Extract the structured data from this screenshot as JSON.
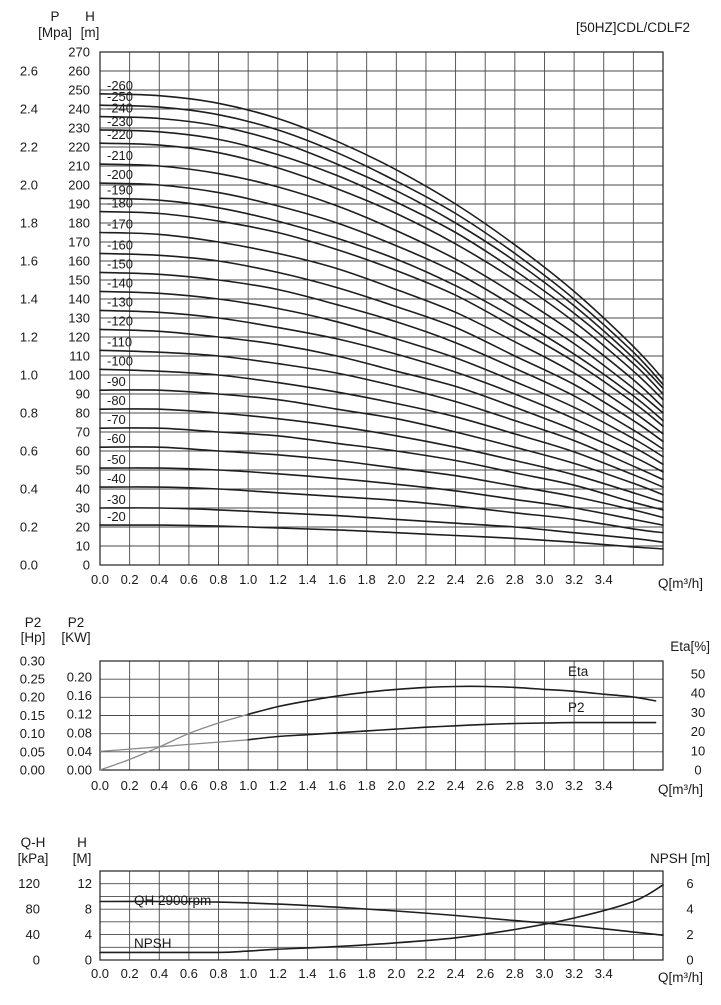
{
  "chart_data": [
    {
      "type": "line",
      "title": "[50HZ]CDL/CDLF2",
      "p_axis_label": [
        "P",
        "[Mpa]"
      ],
      "h_axis_label": [
        "H",
        "[m]"
      ],
      "xlabel": "Q[m³/h]",
      "x_ticks": [
        "0.0",
        "0.2",
        "0.4",
        "0.6",
        "0.8",
        "1.0",
        "1.2",
        "1.4",
        "1.6",
        "1.8",
        "2.0",
        "2.2",
        "2.4",
        "2.6",
        "2.8",
        "3.0",
        "3.2",
        "3.4"
      ],
      "xlim": [
        0,
        3.8
      ],
      "h_ticks": [
        "0",
        "10",
        "20",
        "30",
        "40",
        "50",
        "60",
        "70",
        "80",
        "90",
        "100",
        "110",
        "120",
        "130",
        "140",
        "150",
        "160",
        "170",
        "180",
        "190",
        "200",
        "210",
        "220",
        "230",
        "240",
        "250",
        "260",
        "270"
      ],
      "ylim": [
        0,
        270
      ],
      "p_ticks": [
        "0.0",
        "0.2",
        "0.4",
        "0.6",
        "0.8",
        "1.0",
        "1.2",
        "1.4",
        "1.6",
        "1.8",
        "2.0",
        "2.2",
        "2.4",
        "2.6"
      ],
      "p_lim": [
        0,
        2.7
      ],
      "q": [
        0,
        0.4,
        0.8,
        1.2,
        1.6,
        2.0,
        2.4,
        2.8,
        3.2,
        3.6,
        3.8
      ],
      "series": [
        {
          "name": "-20",
          "values": [
            21,
            21,
            20.5,
            19.5,
            18.5,
            17,
            15.5,
            14,
            12,
            9.5,
            8.5
          ]
        },
        {
          "name": "-30",
          "values": [
            30,
            30,
            29,
            27.5,
            26,
            24,
            22,
            20,
            17,
            14,
            12
          ]
        },
        {
          "name": "-40",
          "values": [
            41,
            41,
            40,
            38,
            36,
            34,
            31,
            27.5,
            24,
            19,
            17
          ]
        },
        {
          "name": "-50",
          "values": [
            51,
            51,
            50,
            48,
            45.5,
            42.5,
            39,
            34.5,
            30,
            24,
            21
          ]
        },
        {
          "name": "-60",
          "values": [
            62,
            62,
            60,
            58,
            55,
            51,
            47,
            41.5,
            36,
            29,
            25
          ]
        },
        {
          "name": "-70",
          "values": [
            72,
            72,
            70,
            68,
            64,
            60,
            55,
            48.5,
            42,
            33,
            29
          ]
        },
        {
          "name": "-80",
          "values": [
            82,
            82,
            80,
            77,
            73,
            68,
            62,
            55,
            47.5,
            38,
            33
          ]
        },
        {
          "name": "-90",
          "values": [
            92,
            92,
            90,
            87,
            82,
            77,
            70,
            62,
            53.5,
            43,
            37
          ]
        },
        {
          "name": "-100",
          "values": [
            103,
            102,
            100,
            96,
            91,
            85,
            78,
            69,
            59.5,
            47.5,
            41
          ]
        },
        {
          "name": "-110",
          "values": [
            113,
            112,
            110,
            106,
            101,
            94,
            86,
            76,
            65.5,
            52,
            45
          ]
        },
        {
          "name": "-120",
          "values": [
            124,
            123,
            120,
            116,
            110,
            102,
            94,
            83,
            71,
            57,
            49
          ]
        },
        {
          "name": "-130",
          "values": [
            134,
            133,
            130,
            125,
            119,
            111,
            101.5,
            90,
            77,
            62,
            53
          ]
        },
        {
          "name": "-140",
          "values": [
            144,
            143,
            140,
            135,
            128,
            119,
            109,
            96.5,
            83,
            66.5,
            57
          ]
        },
        {
          "name": "-150",
          "values": [
            154,
            153,
            150,
            145,
            137,
            128,
            117,
            103.5,
            89,
            71,
            61
          ]
        },
        {
          "name": "-160",
          "values": [
            164,
            163,
            160,
            154,
            146,
            136,
            125,
            110,
            95,
            76,
            65
          ]
        },
        {
          "name": "-170",
          "values": [
            175,
            174,
            170,
            164,
            156,
            145,
            133,
            117.5,
            101,
            80.5,
            69
          ]
        },
        {
          "name": "-180",
          "values": [
            186,
            185,
            181,
            175,
            166,
            155,
            142,
            125,
            107,
            85.5,
            73
          ]
        },
        {
          "name": "-190",
          "values": [
            193,
            192,
            188,
            181,
            172,
            161,
            147,
            130,
            111,
            89,
            76
          ]
        },
        {
          "name": "-200",
          "values": [
            201,
            200,
            196,
            189,
            180,
            168,
            154,
            136,
            116.5,
            93,
            80
          ]
        },
        {
          "name": "-210",
          "values": [
            211,
            210,
            206,
            199,
            189,
            176,
            161,
            142.5,
            122,
            97.5,
            83
          ]
        },
        {
          "name": "-220",
          "values": [
            222,
            221,
            217,
            209,
            198,
            185,
            169,
            150,
            128,
            102,
            87
          ]
        },
        {
          "name": "-230",
          "values": [
            229,
            228,
            224,
            216,
            205,
            191,
            175,
            155,
            132.5,
            106,
            90
          ]
        },
        {
          "name": "-240",
          "values": [
            236,
            235,
            231,
            223,
            211,
            197,
            180,
            160,
            136.5,
            109,
            93
          ]
        },
        {
          "name": "-250",
          "values": [
            242,
            241,
            237,
            229,
            217,
            202,
            185,
            164,
            140,
            112,
            95
          ]
        },
        {
          "name": "-260",
          "values": [
            248,
            247,
            243,
            235,
            223,
            208,
            190,
            168.5,
            144,
            115,
            98
          ]
        }
      ]
    },
    {
      "type": "line",
      "p2hp_axis_label": [
        "P2",
        "[Hp]"
      ],
      "p2kw_axis_label": [
        "P2",
        "[KW]"
      ],
      "eta_axis_label": "Eta[%]",
      "xlabel": "Q[m³/h]",
      "x_ticks": [
        "0.0",
        "0.2",
        "0.4",
        "0.6",
        "0.8",
        "1.0",
        "1.2",
        "1.4",
        "1.6",
        "1.8",
        "2.0",
        "2.2",
        "2.4",
        "2.6",
        "2.8",
        "3.0",
        "3.2",
        "3.4"
      ],
      "xlim": [
        0,
        3.8
      ],
      "hp_ticks": [
        "0.00",
        "0.05",
        "0.10",
        "0.15",
        "0.20",
        "0.25",
        "0.30"
      ],
      "kw_ticks": [
        "0.00",
        "0.04",
        "0.08",
        "0.12",
        "0.16",
        "0.20"
      ],
      "kw_lim": [
        0,
        0.2
      ],
      "eta_ticks": [
        "0",
        "10",
        "20",
        "30",
        "40",
        "50"
      ],
      "eta_lim": [
        0,
        50
      ],
      "series": [
        {
          "name": "Eta",
          "axis": "eta",
          "q": [
            0,
            0.2,
            0.4,
            0.6,
            0.8,
            1.0,
            1.2,
            1.4,
            1.6,
            1.8,
            2.0,
            2.2,
            2.4,
            2.6,
            2.8,
            3.0,
            3.2,
            3.4,
            3.6,
            3.75
          ],
          "values": [
            0,
            5.5,
            12,
            19,
            24.5,
            29,
            33,
            36,
            38.5,
            40.5,
            42,
            43,
            43.5,
            43.5,
            43,
            42,
            41,
            39.5,
            38,
            36
          ]
        },
        {
          "name": "P2",
          "axis": "kw",
          "q": [
            0,
            0.2,
            0.4,
            0.6,
            0.8,
            1.0,
            1.2,
            1.4,
            1.6,
            1.8,
            2.0,
            2.2,
            2.4,
            2.6,
            2.8,
            3.0,
            3.2,
            3.4,
            3.6,
            3.75
          ],
          "values": [
            0.04,
            0.045,
            0.05,
            0.055,
            0.06,
            0.065,
            0.072,
            0.076,
            0.08,
            0.084,
            0.088,
            0.092,
            0.095,
            0.098,
            0.1,
            0.101,
            0.102,
            0.102,
            0.102,
            0.102
          ]
        }
      ]
    },
    {
      "type": "line",
      "qh_kpa_axis_label": [
        "Q-H",
        "[kPa]"
      ],
      "h_m_axis_label": [
        "H",
        "[M]"
      ],
      "npsh_axis_label": "NPSH [m]",
      "xlabel": "Q[m³/h]",
      "x_ticks": [
        "0.0",
        "0.2",
        "0.4",
        "0.6",
        "0.8",
        "1.0",
        "1.2",
        "1.4",
        "1.6",
        "1.8",
        "2.0",
        "2.2",
        "2.4",
        "2.6",
        "2.8",
        "3.0",
        "3.2",
        "3.4"
      ],
      "xlim": [
        0,
        3.8
      ],
      "kpa_ticks": [
        "0",
        "40",
        "80",
        "120"
      ],
      "m_ticks": [
        "0",
        "4",
        "8",
        "12"
      ],
      "m_lim": [
        0,
        14
      ],
      "npsh_ticks": [
        "0",
        "2",
        "4",
        "6"
      ],
      "npsh_lim": [
        0,
        7
      ],
      "series": [
        {
          "name": "QH 2900rpm",
          "axis": "m",
          "q": [
            0,
            0.4,
            0.8,
            1.2,
            1.6,
            2.0,
            2.4,
            2.8,
            3.2,
            3.6,
            3.8
          ],
          "values": [
            9.2,
            9.2,
            9.1,
            8.8,
            8.3,
            7.7,
            7.0,
            6.2,
            5.4,
            4.4,
            3.9
          ]
        },
        {
          "name": "NPSH",
          "axis": "npsh",
          "q": [
            0,
            0.4,
            0.8,
            1.0,
            1.2,
            1.6,
            2.0,
            2.4,
            2.8,
            3.2,
            3.6,
            3.8
          ],
          "values": [
            0.6,
            0.6,
            0.6,
            0.7,
            0.85,
            1.05,
            1.35,
            1.75,
            2.4,
            3.3,
            4.6,
            5.9
          ]
        }
      ]
    }
  ]
}
